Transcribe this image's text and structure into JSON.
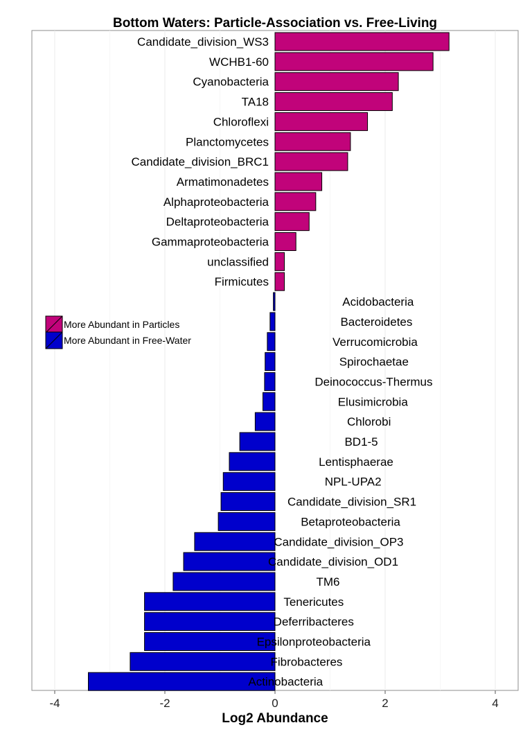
{
  "chart_data": {
    "type": "bar",
    "orientation": "horizontal",
    "title": "Bottom Waters: Particle-Association vs. Free-Living",
    "xlabel": "Log2 Abundance",
    "ylabel": "",
    "xlim": [
      -4.4,
      4.4
    ],
    "xticks": [
      -4,
      -2,
      0,
      2,
      4
    ],
    "grid": true,
    "legend_position": "left",
    "legend": [
      {
        "label": "More Abundant in Particles",
        "color": "#C1037A"
      },
      {
        "label": "More Abundant in Free-Water",
        "color": "#0000CC"
      }
    ],
    "categories": [
      "Candidate_division_WS3",
      "WCHB1-60",
      "Cyanobacteria",
      "TA18",
      "Chloroflexi",
      "Planctomycetes",
      "Candidate_division_BRC1",
      "Armatimonadetes",
      "Alphaproteobacteria",
      "Deltaproteobacteria",
      "Gammaproteobacteria",
      "unclassified",
      "Firmicutes",
      "Acidobacteria",
      "Bacteroidetes",
      "Verrucomicrobia",
      "Spirochaetae",
      "Deinococcus-Thermus",
      "Elusimicrobia",
      "Chlorobi",
      "BD1-5",
      "Lentisphaerae",
      "NPL-UPA2",
      "Candidate_division_SR1",
      "Betaproteobacteria",
      "Candidate_division_OP3",
      "Candidate_division_OD1",
      "TM6",
      "Tenericutes",
      "Deferribacteres",
      "Epsilonproteobacteria",
      "Fibrobacteres",
      "Actinobacteria"
    ],
    "values": [
      3.16,
      2.87,
      2.24,
      2.13,
      1.68,
      1.37,
      1.32,
      0.85,
      0.74,
      0.62,
      0.38,
      0.17,
      0.17,
      -0.03,
      -0.09,
      -0.14,
      -0.18,
      -0.19,
      -0.22,
      -0.36,
      -0.64,
      -0.83,
      -0.94,
      -0.98,
      -1.03,
      -1.46,
      -1.66,
      -1.85,
      -2.37,
      -2.37,
      -2.37,
      -2.63,
      -3.39
    ],
    "colors": {
      "positive": "#C1037A",
      "negative": "#0000CC",
      "bar_edge": "#000000"
    }
  }
}
